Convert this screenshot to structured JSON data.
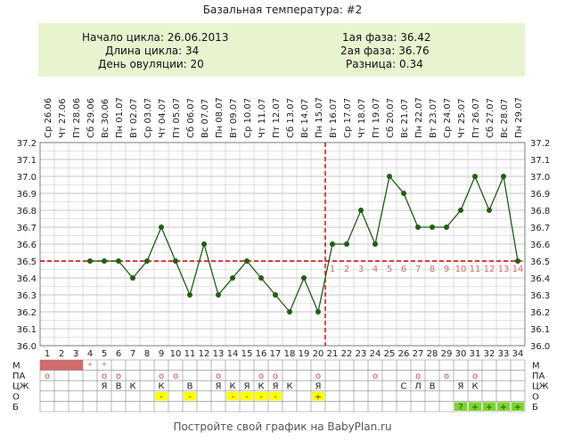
{
  "header": {
    "title": "Базальная температура: #2",
    "cycle_start": "Начало цикла: 26.06.2013",
    "cycle_length": "Длина цикла: 34",
    "ovulation_day": "День овуляции: 20",
    "phase1": "1ая фаза: 36.42",
    "phase2": "2ая фаза: 36.76",
    "difference": "Разница: 0.34"
  },
  "footer": "Постройте свой график на BabyPlan.ru",
  "colors": {
    "line": "#1f5e12",
    "coverline": "#cc0000",
    "grid": "#c8c8c8",
    "gridMajor": "#8a8a8a",
    "infoBg": "#e8f4d0",
    "menses": "#d46a6a",
    "yellow": "#ffff00",
    "green": "#7cd62a",
    "phaseNumber": "#d46a6a"
  },
  "icons": [
    "moon-icon",
    "moon-icon"
  ],
  "chart_data": {
    "type": "line",
    "x": [
      1,
      2,
      3,
      4,
      5,
      6,
      7,
      8,
      9,
      10,
      11,
      12,
      13,
      14,
      15,
      16,
      17,
      18,
      19,
      20,
      21,
      22,
      23,
      24,
      25,
      26,
      27,
      28,
      29,
      30,
      31,
      32,
      33,
      34
    ],
    "dates": [
      "26.06",
      "27.06",
      "28.06",
      "29.06",
      "30.06",
      "01.07",
      "02.07",
      "03.07",
      "04.07",
      "05.07",
      "06.07",
      "07.07",
      "08.07",
      "09.07",
      "10.07",
      "11.07",
      "12.07",
      "13.07",
      "14.07",
      "15.07",
      "16.07",
      "17.07",
      "18.07",
      "19.07",
      "20.07",
      "21.07",
      "22.07",
      "23.07",
      "24.07",
      "25.07",
      "26.07",
      "27.07",
      "28.07",
      "29.07"
    ],
    "weekdays": [
      "Ср",
      "Чт",
      "Пт",
      "Сб",
      "Вс",
      "Пн",
      "Вт",
      "Ср",
      "Чт",
      "Пт",
      "Сб",
      "Вс",
      "Пн",
      "Вт",
      "Ср",
      "Чт",
      "Пт",
      "Сб",
      "Вс",
      "Пн",
      "Вт",
      "Ср",
      "Чт",
      "Пт",
      "Сб",
      "Вс",
      "Пн",
      "Вт",
      "Ср",
      "Чт",
      "Пт",
      "Сб",
      "Вс",
      "Пн"
    ],
    "values": [
      null,
      null,
      null,
      36.5,
      36.5,
      36.5,
      36.4,
      36.5,
      36.7,
      36.5,
      36.3,
      36.6,
      36.3,
      36.4,
      36.5,
      36.4,
      36.3,
      36.2,
      36.4,
      36.2,
      36.6,
      36.6,
      36.8,
      36.6,
      37.0,
      36.9,
      36.7,
      36.7,
      36.7,
      36.8,
      37.0,
      36.8,
      37.0,
      36.5
    ],
    "ylim": [
      36.0,
      37.2
    ],
    "yticks": [
      "36.0",
      "36.1",
      "36.2",
      "36.3",
      "36.4",
      "36.5",
      "36.6",
      "36.7",
      "36.8",
      "36.9",
      "37.0",
      "37.1",
      "37.2"
    ],
    "coverline": 36.5,
    "ovulation_day": 20,
    "phase_numbers": [
      "1",
      "2",
      "3",
      "4",
      "5",
      "6",
      "7",
      "8",
      "9",
      "10",
      "11",
      "12",
      "13",
      "14"
    ],
    "moon_days": [
      2,
      31
    ]
  },
  "table": {
    "row_labels": [
      "М",
      "ПА",
      "ЦЖ",
      "О",
      "Б"
    ],
    "menses_days": [
      1,
      2,
      3
    ],
    "menses_marks": {
      "4": "*",
      "5": "*"
    },
    "pa": {
      "1": "o",
      "5": "o",
      "6": "o",
      "9": "o",
      "10": "o",
      "13": "o",
      "16": "o",
      "17": "o",
      "20": "o",
      "24": "o",
      "27": "o",
      "29": "o",
      "31": "o"
    },
    "cm": {
      "5": "Я",
      "6": "В",
      "7": "К",
      "9": "К",
      "11": "В",
      "13": "Я",
      "14": "К",
      "15": "Я",
      "16": "К",
      "17": "Я",
      "18": "К",
      "20": "Я",
      "26": "С",
      "27": "Л",
      "28": "В",
      "30": "Я",
      "31": "К"
    },
    "opk": {
      "9": "-",
      "11": "-",
      "14": "-",
      "15": "-",
      "16": "-",
      "17": "-",
      "20": "+"
    },
    "preg": {
      "30": "?",
      "31": "+",
      "32": "+",
      "33": "+",
      "34": "+"
    }
  }
}
